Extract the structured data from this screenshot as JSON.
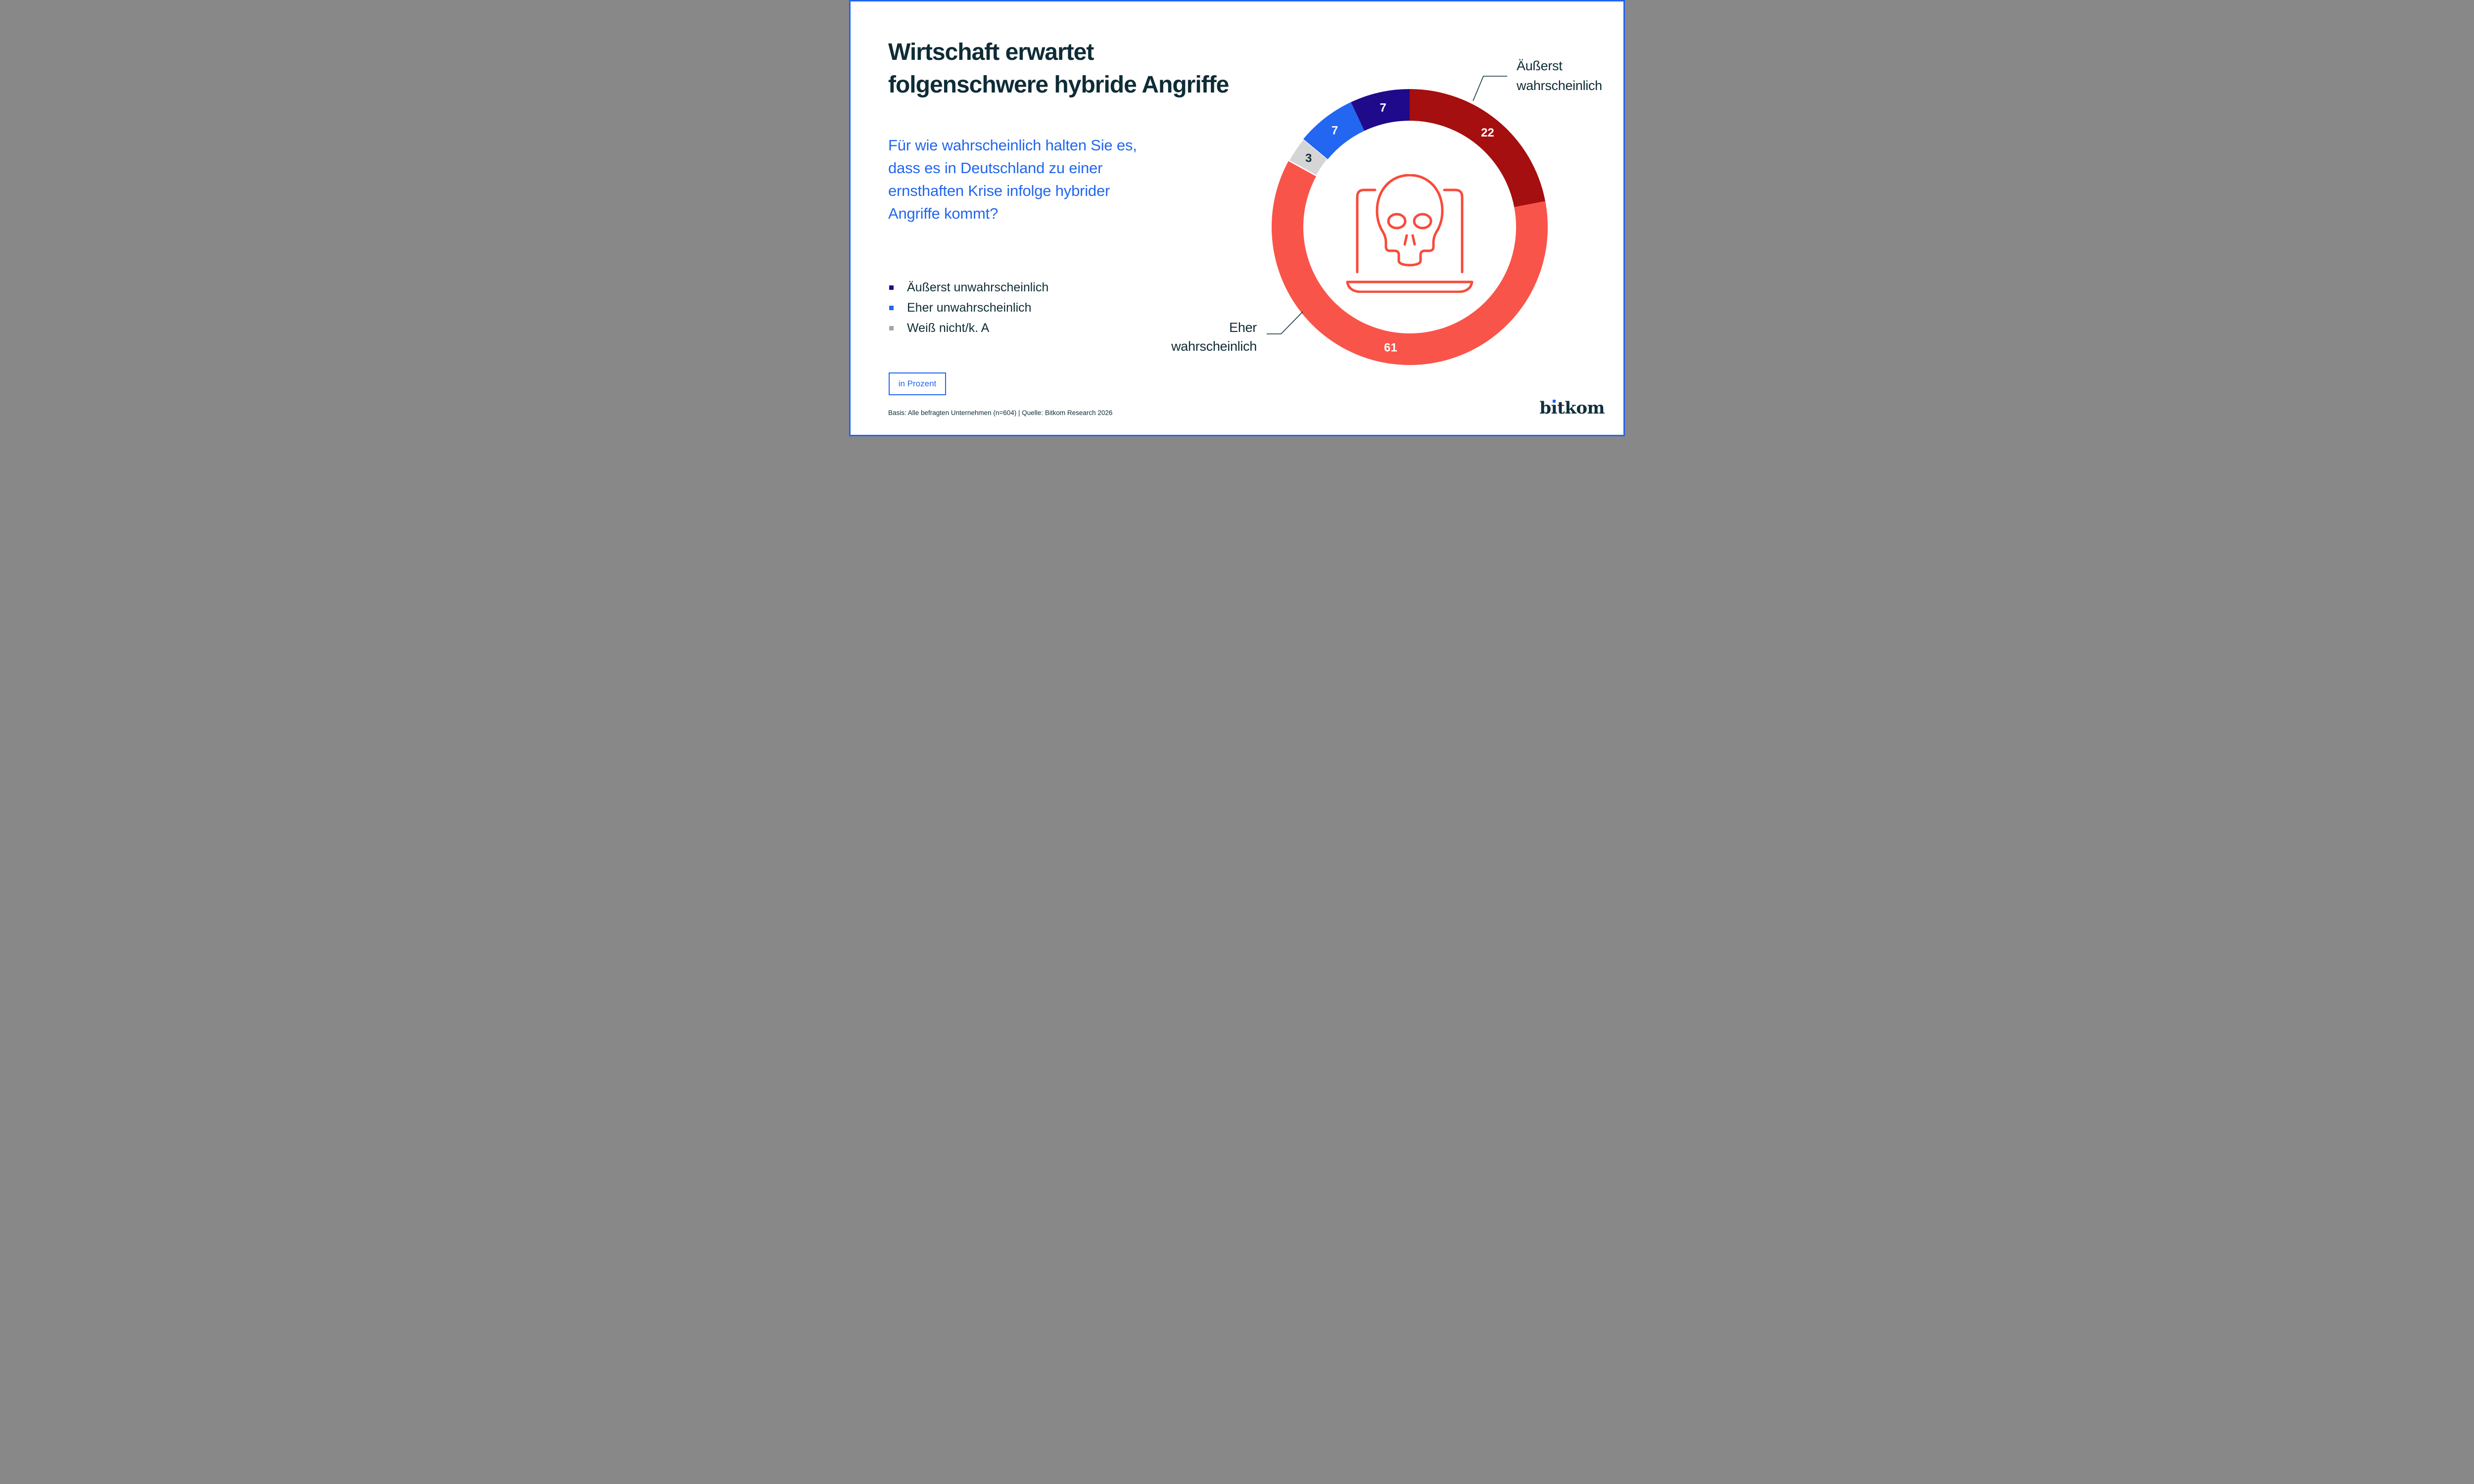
{
  "page": {
    "background": "#ffffff",
    "border_color": "#2166f0"
  },
  "title": {
    "lines": [
      "Wirtschaft erwartet",
      "folgenschwere hybride Angriffe"
    ],
    "color": "#0f2c36"
  },
  "question": {
    "lines": [
      "Für wie wahrscheinlich halten Sie es,",
      "dass es in Deutschland zu einer",
      "ernsthaften Krise infolge hybrider",
      "Angriffe kommt?"
    ],
    "color": "#2166f0"
  },
  "legend": {
    "items": [
      {
        "label": "Äußerst unwahrscheinlich",
        "color": "#1e0a8a"
      },
      {
        "label": "Eher unwahrscheinlich",
        "color": "#2266f2"
      },
      {
        "label": "Weiß nicht/k. A",
        "color": "#a6a6a6"
      }
    ]
  },
  "unit_badge": {
    "label": "in Prozent"
  },
  "footer": {
    "note": "Basis: Alle befragten Unternehmen (n=604) | Quelle: Bitkom Research 2026"
  },
  "logo": {
    "name": "bitkom",
    "parts": [
      "b",
      "ı",
      "tkom"
    ],
    "dot_color": "#2166f0"
  },
  "chart_data": {
    "type": "pie",
    "subtype": "donut",
    "unit": "percent",
    "start_angle_deg": 0,
    "direction": "clockwise",
    "title": "Wirtschaft erwartet folgenschwere hybride Angriffe",
    "segments": [
      {
        "label": "Äußerst wahrscheinlich",
        "value": 22,
        "color": "#a50f0f",
        "value_color": "#ffffff",
        "separator": false
      },
      {
        "label": "Eher wahrscheinlich",
        "value": 61,
        "color": "#f9544a",
        "value_color": "#ffffff",
        "separator": false
      },
      {
        "label": "Weiß nicht/k. A",
        "value": 3,
        "color": "#d5d5d5",
        "value_color": "#10303a",
        "separator": true
      },
      {
        "label": "Eher unwahrscheinlich",
        "value": 7,
        "color": "#2266f2",
        "value_color": "#ffffff",
        "separator": false
      },
      {
        "label": "Äußerst unwahrscheinlich",
        "value": 7,
        "color": "#1e0a8a",
        "value_color": "#ffffff",
        "separator": false
      }
    ],
    "callouts": [
      {
        "label": "Äußerst wahrscheinlich",
        "target_value": 22,
        "position": "top-right"
      },
      {
        "label": "Eher wahrscheinlich",
        "target_value": 61,
        "position": "bottom-left"
      }
    ],
    "center_icon": "laptop-skull",
    "icon_color": "#f94a3a"
  }
}
